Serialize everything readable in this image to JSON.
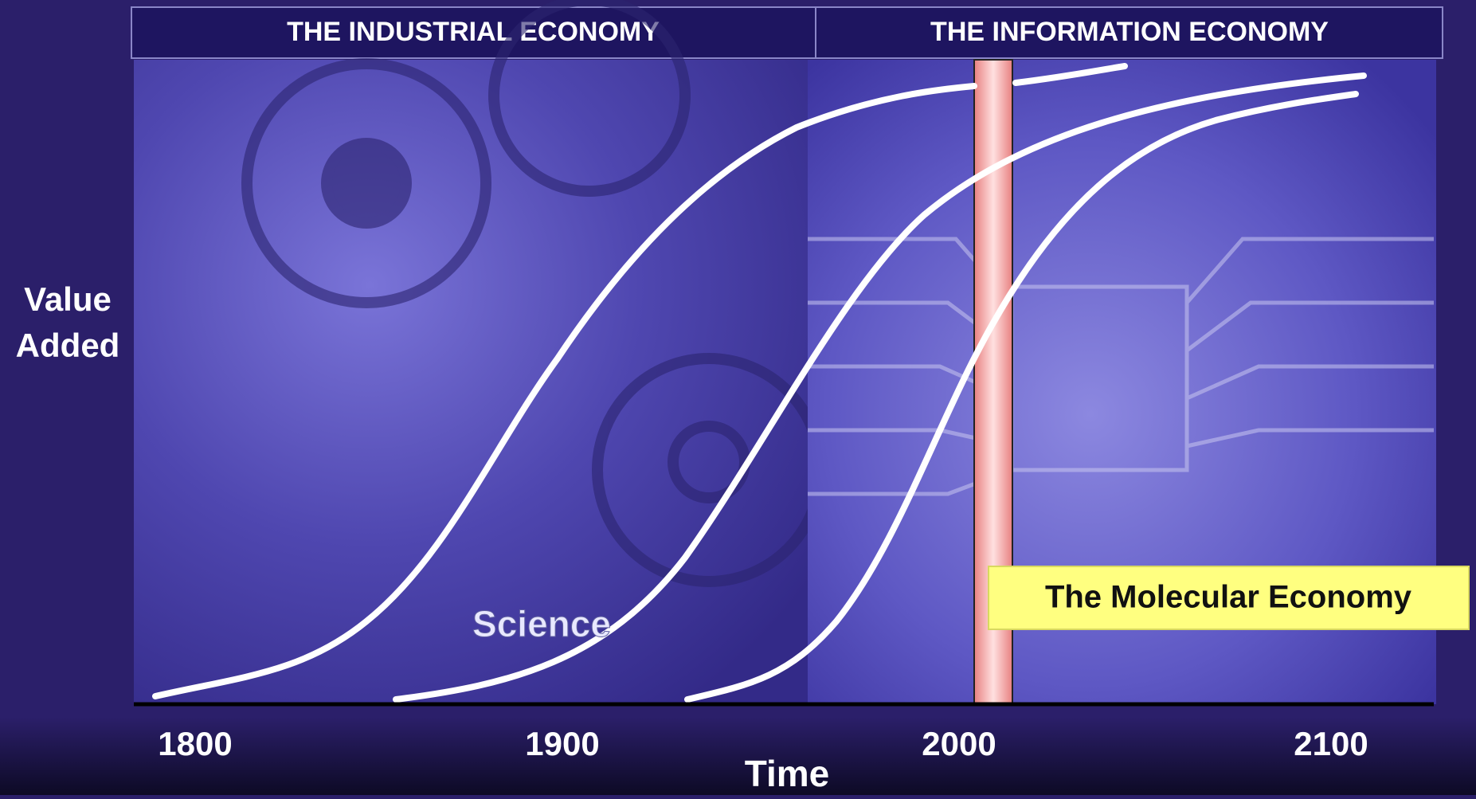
{
  "header": {
    "left": "THE INDUSTRIAL ECONOMY",
    "right": "THE INFORMATION ECONOMY"
  },
  "axis": {
    "y_label": [
      "Value",
      "Added"
    ],
    "x_label": "Time",
    "ticks": [
      "1800",
      "1900",
      "2000",
      "2100"
    ]
  },
  "annotations": {
    "science": "Science",
    "molecular": "The Molecular Economy"
  }
}
